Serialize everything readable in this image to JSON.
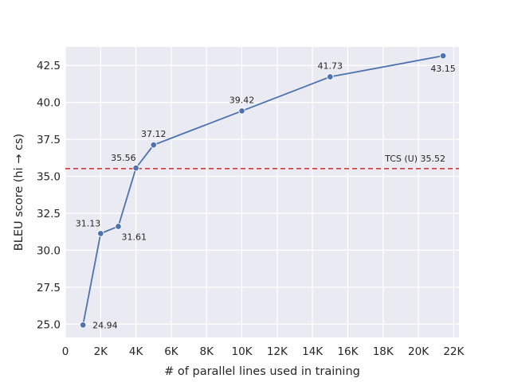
{
  "chart_data": {
    "type": "line",
    "xlabel": "# of parallel lines used in training",
    "ylabel": "BLEU score (hi → cs)",
    "xlim": [
      0,
      22300
    ],
    "ylim": [
      24.1,
      43.75
    ],
    "x_ticks": [
      0,
      2000,
      4000,
      6000,
      8000,
      10000,
      12000,
      14000,
      16000,
      18000,
      20000,
      22000
    ],
    "x_tick_labels": [
      "0",
      "2K",
      "4K",
      "6K",
      "8K",
      "10K",
      "12K",
      "14K",
      "16K",
      "18K",
      "20K",
      "22K"
    ],
    "y_ticks": [
      25.0,
      27.5,
      30.0,
      32.5,
      35.0,
      37.5,
      40.0,
      42.5
    ],
    "y_tick_labels": [
      "25.0",
      "27.5",
      "30.0",
      "32.5",
      "35.0",
      "37.5",
      "40.0",
      "42.5"
    ],
    "grid": true,
    "series": [
      {
        "points": [
          {
            "x": 1000,
            "y": 24.94,
            "label": "24.94",
            "label_pos": "right"
          },
          {
            "x": 2000,
            "y": 31.13,
            "label": "31.13",
            "label_pos": "upper-left"
          },
          {
            "x": 3000,
            "y": 31.61,
            "label": "31.61",
            "label_pos": "lower-right"
          },
          {
            "x": 4000,
            "y": 35.56,
            "label": "35.56",
            "label_pos": "upper-left"
          },
          {
            "x": 5000,
            "y": 37.12,
            "label": "37.12",
            "label_pos": "above"
          },
          {
            "x": 10000,
            "y": 39.42,
            "label": "39.42",
            "label_pos": "above"
          },
          {
            "x": 15000,
            "y": 41.73,
            "label": "41.73",
            "label_pos": "above"
          },
          {
            "x": 21400,
            "y": 43.15,
            "label": "43.15",
            "label_pos": "below"
          }
        ],
        "color": "#4c72b0"
      }
    ],
    "reference_line": {
      "y": 35.52,
      "label": "TCS (U) 35.52",
      "color": "#d62728",
      "style": "dashed"
    }
  }
}
